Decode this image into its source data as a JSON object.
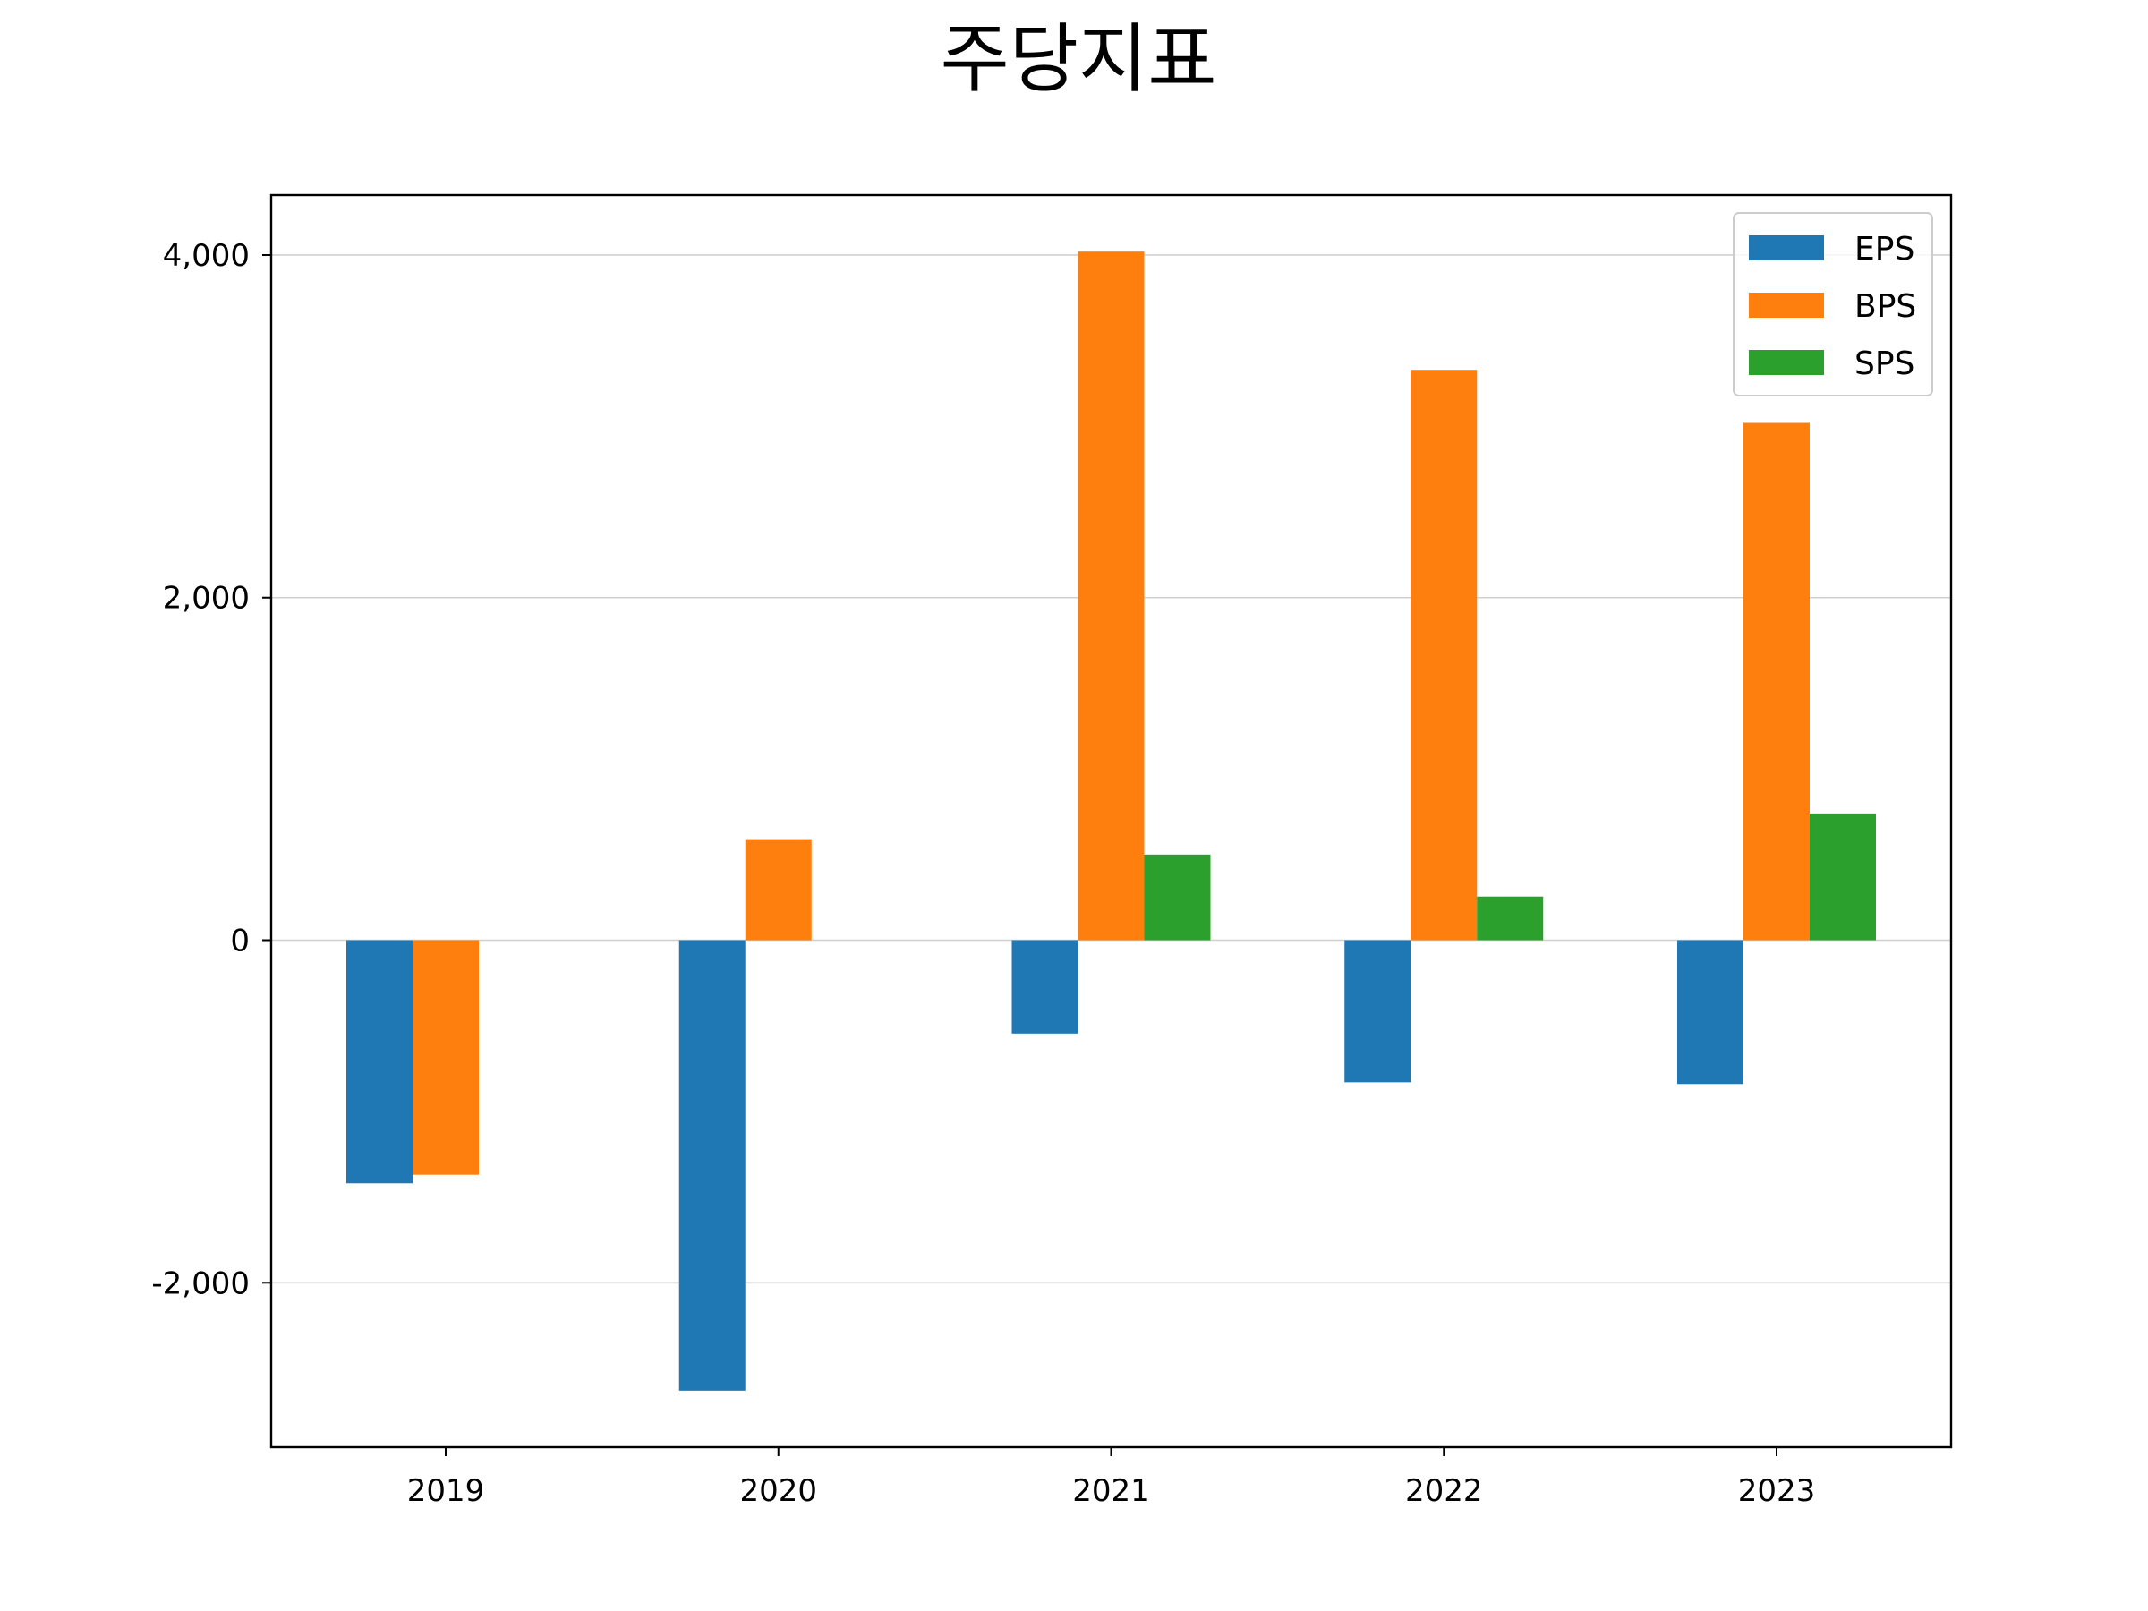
{
  "chart_data": {
    "type": "bar",
    "title": "주당지표",
    "xlabel": "",
    "ylabel": "",
    "categories": [
      "2019",
      "2020",
      "2021",
      "2022",
      "2023"
    ],
    "series": [
      {
        "name": "EPS",
        "color": "#1f77b4",
        "values": [
          -1420,
          -2630,
          -545,
          -830,
          -840
        ]
      },
      {
        "name": "BPS",
        "color": "#ff7f0e",
        "values": [
          -1370,
          590,
          4020,
          3330,
          3020
        ]
      },
      {
        "name": "SPS",
        "color": "#2ca02c",
        "values": [
          0,
          0,
          500,
          255,
          740
        ]
      }
    ],
    "ylim": [
      -2960,
      4350
    ],
    "yticks": [
      -2000,
      0,
      2000,
      4000
    ],
    "ytick_labels": [
      "-2,000",
      "0",
      "2,000",
      "4,000"
    ],
    "grid": "y",
    "legend_position": "top-right"
  }
}
